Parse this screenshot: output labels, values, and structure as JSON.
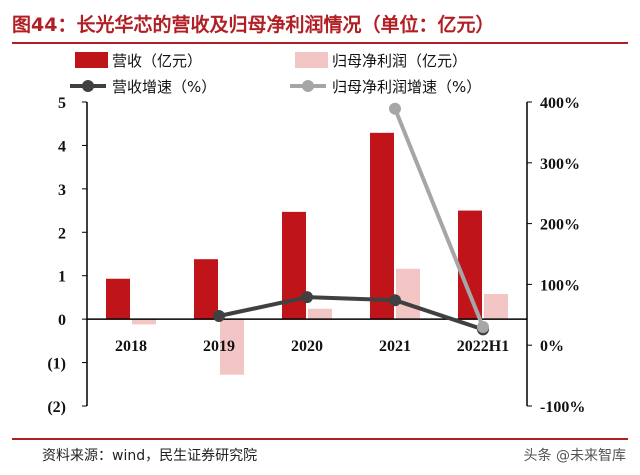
{
  "title": "图44：长光华芯的营收及归母净利润情况（单位：亿元）",
  "source": "资料来源：wind，民生证券研究院",
  "watermark": "头条 @未来智库",
  "colors": {
    "revenue": "#c0141b",
    "profit": "#f3c6c6",
    "rev_growth": "#404040",
    "profit_growth": "#a6a6a6",
    "accent": "#b11f24"
  },
  "chart_data": {
    "type": "bar",
    "categories": [
      "2018",
      "2019",
      "2020",
      "2021",
      "2022H1"
    ],
    "series": [
      {
        "name": "营收（亿元）",
        "kind": "bar",
        "axis": "left",
        "values": [
          0.93,
          1.38,
          2.47,
          4.29,
          2.5
        ]
      },
      {
        "name": "归母净利润（亿元）",
        "kind": "bar",
        "axis": "left",
        "values": [
          -0.12,
          -1.28,
          0.24,
          1.16,
          0.58
        ]
      },
      {
        "name": "营收增速（%）",
        "kind": "line",
        "axis": "right",
        "values": [
          null,
          48,
          79,
          74,
          26
        ]
      },
      {
        "name": "归母净利润增速（%）",
        "kind": "line",
        "axis": "right",
        "values": [
          null,
          null,
          null,
          389,
          30
        ]
      }
    ],
    "left_axis": {
      "ylim": [
        -2,
        5
      ],
      "tick_values": [
        -2,
        -1,
        0,
        1,
        2,
        3,
        4,
        5
      ],
      "tick_labels": [
        "(2)",
        "(1)",
        "0",
        "1",
        "2",
        "3",
        "4",
        "5"
      ]
    },
    "right_axis": {
      "ylim": [
        -100,
        400
      ],
      "tick_values": [
        -100,
        0,
        100,
        200,
        300,
        400
      ],
      "tick_labels": [
        "-100%",
        "0%",
        "100%",
        "200%",
        "300%",
        "400%"
      ]
    },
    "legend_position": "top",
    "grid": false
  }
}
